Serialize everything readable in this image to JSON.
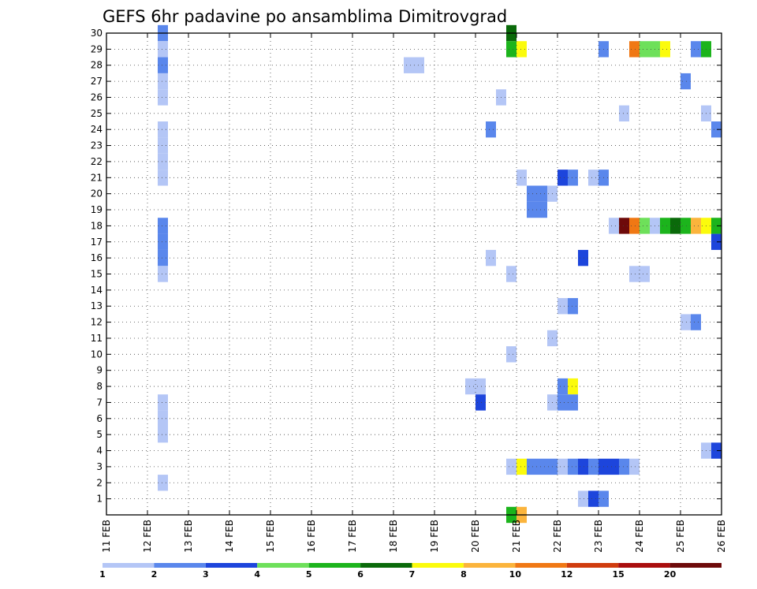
{
  "chart_data": {
    "type": "heatmap",
    "title": "GEFS 6hr padavine po ansamblima Dimitrovgrad",
    "xlabel": "",
    "ylabel": "",
    "x_ticks": [
      "11 FEB",
      "12 FEB",
      "13 FEB",
      "14 FEB",
      "15 FEB",
      "16 FEB",
      "17 FEB",
      "18 FEB",
      "19 FEB",
      "20 FEB",
      "21 FEB",
      "22 FEB",
      "23 FEB",
      "24 FEB",
      "25 FEB",
      "26 FEB"
    ],
    "y_ticks": [
      "1",
      "2",
      "3",
      "4",
      "5",
      "6",
      "7",
      "8",
      "9",
      "10",
      "11",
      "12",
      "13",
      "14",
      "15",
      "16",
      "17",
      "18",
      "19",
      "20",
      "21",
      "22",
      "23",
      "24",
      "25",
      "26",
      "27",
      "28",
      "29",
      "30"
    ],
    "xlim": [
      0,
      15
    ],
    "ylim": [
      0,
      30
    ],
    "grid": true,
    "colorbar": {
      "labels": [
        "1",
        "2",
        "3",
        "4",
        "5",
        "6",
        "7",
        "8",
        "10",
        "12",
        "15",
        "20"
      ],
      "colors": [
        "#b4c6f6",
        "#5a87ec",
        "#1d45dc",
        "#6ee05a",
        "#1cb41c",
        "#0a6a0a",
        "#fbfb0c",
        "#fbb43c",
        "#f07814",
        "#d03c0e",
        "#aa0e0e",
        "#6e0a0a"
      ]
    },
    "cell_width_days": 0.25,
    "cells": [
      {
        "day": 1.25,
        "m": 30,
        "c": 1
      },
      {
        "day": 1.25,
        "m": 29,
        "c": 0
      },
      {
        "day": 1.25,
        "m": 28,
        "c": 1
      },
      {
        "day": 1.25,
        "m": 27,
        "c": 0
      },
      {
        "day": 1.25,
        "m": 26,
        "c": 0
      },
      {
        "day": 1.25,
        "m": 24,
        "c": 0
      },
      {
        "day": 1.25,
        "m": 23,
        "c": 0
      },
      {
        "day": 1.25,
        "m": 22,
        "c": 0
      },
      {
        "day": 1.25,
        "m": 21,
        "c": 0
      },
      {
        "day": 1.25,
        "m": 18,
        "c": 1
      },
      {
        "day": 1.25,
        "m": 17,
        "c": 1
      },
      {
        "day": 1.25,
        "m": 16,
        "c": 1
      },
      {
        "day": 1.25,
        "m": 15,
        "c": 0
      },
      {
        "day": 1.25,
        "m": 7,
        "c": 0
      },
      {
        "day": 1.25,
        "m": 6,
        "c": 0
      },
      {
        "day": 1.25,
        "m": 5,
        "c": 0
      },
      {
        "day": 1.25,
        "m": 2,
        "c": 0
      },
      {
        "day": 7.25,
        "m": 28,
        "c": 0
      },
      {
        "day": 7.5,
        "m": 28,
        "c": 0
      },
      {
        "day": 8.75,
        "m": 8,
        "c": 0
      },
      {
        "day": 9.0,
        "m": 8,
        "c": 0
      },
      {
        "day": 9.0,
        "m": 7,
        "c": 2
      },
      {
        "day": 9.25,
        "m": 24,
        "c": 1
      },
      {
        "day": 9.25,
        "m": 16,
        "c": 0
      },
      {
        "day": 9.5,
        "m": 26,
        "c": 0
      },
      {
        "day": 9.75,
        "m": 30,
        "c": 5
      },
      {
        "day": 9.75,
        "m": 29,
        "c": 4
      },
      {
        "day": 10.0,
        "m": 29,
        "c": 6
      },
      {
        "day": 10.0,
        "m": 21,
        "c": 0
      },
      {
        "day": 9.75,
        "m": 15,
        "c": 0
      },
      {
        "day": 9.75,
        "m": 10,
        "c": 0
      },
      {
        "day": 9.75,
        "m": 3,
        "c": 0
      },
      {
        "day": 10.0,
        "m": 3,
        "c": 6
      },
      {
        "day": 10.25,
        "m": 3,
        "c": 1
      },
      {
        "day": 10.5,
        "m": 3,
        "c": 1
      },
      {
        "day": 10.75,
        "m": 3,
        "c": 1
      },
      {
        "day": 11.0,
        "m": 3,
        "c": 0
      },
      {
        "day": 11.25,
        "m": 3,
        "c": 1
      },
      {
        "day": 11.5,
        "m": 3,
        "c": 2
      },
      {
        "day": 11.75,
        "m": 3,
        "c": 1
      },
      {
        "day": 12.0,
        "m": 3,
        "c": 2
      },
      {
        "day": 12.25,
        "m": 3,
        "c": 2
      },
      {
        "day": 12.5,
        "m": 3,
        "c": 1
      },
      {
        "day": 12.75,
        "m": 3,
        "c": 0
      },
      {
        "day": 9.75,
        "m": 0,
        "c": 4
      },
      {
        "day": 10.0,
        "m": 0,
        "c": 7
      },
      {
        "day": 10.25,
        "m": 20,
        "c": 1
      },
      {
        "day": 10.5,
        "m": 20,
        "c": 1
      },
      {
        "day": 10.75,
        "m": 20,
        "c": 0
      },
      {
        "day": 10.25,
        "m": 19,
        "c": 1
      },
      {
        "day": 10.5,
        "m": 19,
        "c": 1
      },
      {
        "day": 11.0,
        "m": 21,
        "c": 2
      },
      {
        "day": 11.25,
        "m": 21,
        "c": 1
      },
      {
        "day": 11.75,
        "m": 21,
        "c": 0
      },
      {
        "day": 12.0,
        "m": 21,
        "c": 1
      },
      {
        "day": 10.75,
        "m": 11,
        "c": 0
      },
      {
        "day": 10.75,
        "m": 7,
        "c": 0
      },
      {
        "day": 11.0,
        "m": 13,
        "c": 0
      },
      {
        "day": 11.25,
        "m": 13,
        "c": 1
      },
      {
        "day": 11.0,
        "m": 8,
        "c": 1
      },
      {
        "day": 11.25,
        "m": 8,
        "c": 6
      },
      {
        "day": 11.0,
        "m": 7,
        "c": 1
      },
      {
        "day": 11.25,
        "m": 7,
        "c": 1
      },
      {
        "day": 11.5,
        "m": 16,
        "c": 2
      },
      {
        "day": 11.5,
        "m": 1,
        "c": 0
      },
      {
        "day": 11.75,
        "m": 1,
        "c": 2
      },
      {
        "day": 12.0,
        "m": 1,
        "c": 1
      },
      {
        "day": 12.0,
        "m": 29,
        "c": 1
      },
      {
        "day": 12.5,
        "m": 25,
        "c": 0
      },
      {
        "day": 12.25,
        "m": 18,
        "c": 0
      },
      {
        "day": 12.5,
        "m": 18,
        "c": 11
      },
      {
        "day": 12.75,
        "m": 18,
        "c": 8
      },
      {
        "day": 13.0,
        "m": 18,
        "c": 3
      },
      {
        "day": 12.75,
        "m": 15,
        "c": 0
      },
      {
        "day": 13.0,
        "m": 15,
        "c": 0
      },
      {
        "day": 12.75,
        "m": 29,
        "c": 8
      },
      {
        "day": 13.0,
        "m": 29,
        "c": 3
      },
      {
        "day": 13.25,
        "m": 29,
        "c": 3
      },
      {
        "day": 13.5,
        "m": 29,
        "c": 6
      },
      {
        "day": 13.25,
        "m": 18,
        "c": 0
      },
      {
        "day": 13.5,
        "m": 18,
        "c": 4
      },
      {
        "day": 13.75,
        "m": 18,
        "c": 5
      },
      {
        "day": 14.0,
        "m": 18,
        "c": 4
      },
      {
        "day": 14.25,
        "m": 18,
        "c": 7
      },
      {
        "day": 14.5,
        "m": 18,
        "c": 6
      },
      {
        "day": 14.75,
        "m": 18,
        "c": 4
      },
      {
        "day": 14.0,
        "m": 27,
        "c": 1
      },
      {
        "day": 14.0,
        "m": 12,
        "c": 0
      },
      {
        "day": 14.25,
        "m": 12,
        "c": 1
      },
      {
        "day": 14.25,
        "m": 29,
        "c": 1
      },
      {
        "day": 14.5,
        "m": 29,
        "c": 4
      },
      {
        "day": 14.5,
        "m": 25,
        "c": 0
      },
      {
        "day": 14.75,
        "m": 24,
        "c": 1
      },
      {
        "day": 14.75,
        "m": 17,
        "c": 2
      },
      {
        "day": 14.5,
        "m": 4,
        "c": 0
      },
      {
        "day": 14.75,
        "m": 4,
        "c": 2
      }
    ]
  }
}
